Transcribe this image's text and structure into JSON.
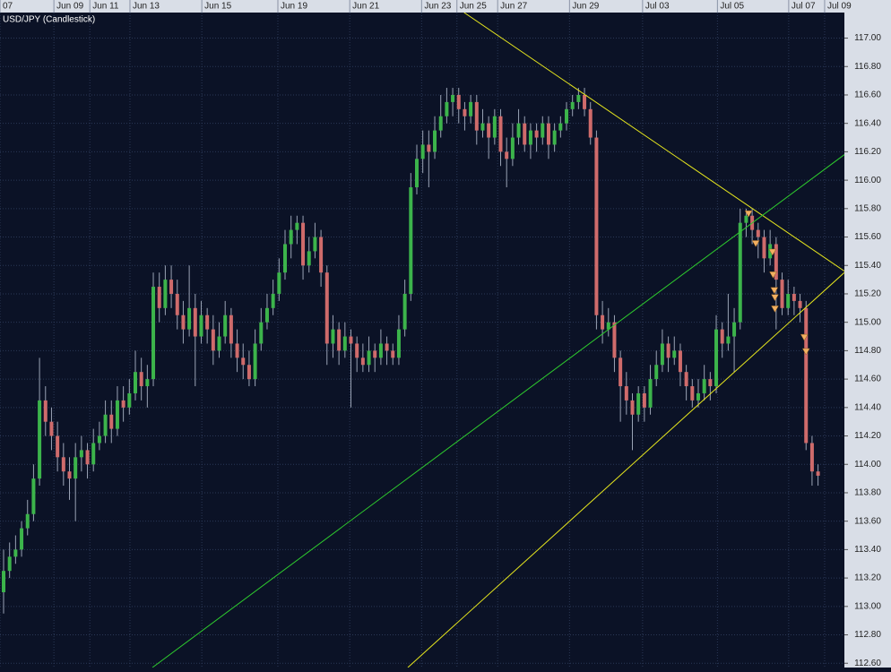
{
  "chart_data": {
    "type": "candlestick",
    "title": "USD/JPY (Candlestick)",
    "xlim": [
      -0.6,
      140.4
    ],
    "ylim": [
      112.57,
      117.18
    ],
    "grid": true,
    "up_color": "#3cb44b",
    "down_color": "#cf6b6b",
    "xticks": [
      {
        "value": -0.6,
        "label": "07"
      },
      {
        "value": 8.4,
        "label": "Jun 09"
      },
      {
        "value": 14.4,
        "label": "Jun 11"
      },
      {
        "value": 21.1,
        "label": "Jun 13"
      },
      {
        "value": 33.1,
        "label": "Jun 15"
      },
      {
        "value": 45.8,
        "label": "Jun 19"
      },
      {
        "value": 57.8,
        "label": "Jun 21"
      },
      {
        "value": 69.8,
        "label": "Jun 23"
      },
      {
        "value": 75.7,
        "label": "Jun 25"
      },
      {
        "value": 82.5,
        "label": "Jun 27"
      },
      {
        "value": 94.5,
        "label": "Jun 29"
      },
      {
        "value": 106.7,
        "label": "Jul 03"
      },
      {
        "value": 119.2,
        "label": "Jul 05"
      },
      {
        "value": 131.1,
        "label": "Jul 07"
      },
      {
        "value": 137.1,
        "label": "Jul 09"
      }
    ],
    "yticks": [
      {
        "value": 112.6,
        "label": "112.60"
      },
      {
        "value": 112.8,
        "label": "112.80"
      },
      {
        "value": 113,
        "label": "113.00"
      },
      {
        "value": 113.2,
        "label": "113.20"
      },
      {
        "value": 113.4,
        "label": "113.40"
      },
      {
        "value": 113.6,
        "label": "113.60"
      },
      {
        "value": 113.8,
        "label": "113.80"
      },
      {
        "value": 114,
        "label": "114.00"
      },
      {
        "value": 114.2,
        "label": "114.20"
      },
      {
        "value": 114.4,
        "label": "114.40"
      },
      {
        "value": 114.6,
        "label": "114.60"
      },
      {
        "value": 114.8,
        "label": "114.80"
      },
      {
        "value": 115,
        "label": "115.00"
      },
      {
        "value": 115.2,
        "label": "115.20"
      },
      {
        "value": 115.4,
        "label": "115.40"
      },
      {
        "value": 115.6,
        "label": "115.60"
      },
      {
        "value": 115.8,
        "label": "115.80"
      },
      {
        "value": 116,
        "label": "116.00"
      },
      {
        "value": 116.2,
        "label": "116.20"
      },
      {
        "value": 116.4,
        "label": "116.40"
      },
      {
        "value": 116.6,
        "label": "116.60"
      },
      {
        "value": 116.8,
        "label": "116.80"
      },
      {
        "value": 117,
        "label": "117.00"
      }
    ],
    "x": [
      0,
      1,
      2,
      3,
      4,
      5,
      6,
      7,
      8,
      9,
      10,
      11,
      12,
      13,
      14,
      15,
      16,
      17,
      18,
      19,
      20,
      21,
      22,
      23,
      24,
      25,
      26,
      27,
      28,
      29,
      30,
      31,
      32,
      33,
      34,
      35,
      36,
      37,
      38,
      39,
      40,
      41,
      42,
      43,
      44,
      45,
      46,
      47,
      48,
      49,
      50,
      51,
      52,
      53,
      54,
      55,
      56,
      57,
      58,
      59,
      60,
      61,
      62,
      63,
      64,
      65,
      66,
      67,
      68,
      69,
      70,
      71,
      72,
      73,
      74,
      75,
      76,
      77,
      78,
      79,
      80,
      81,
      82,
      83,
      84,
      85,
      86,
      87,
      88,
      89,
      90,
      91,
      92,
      93,
      94,
      95,
      96,
      97,
      98,
      99,
      100,
      101,
      102,
      103,
      104,
      105,
      106,
      107,
      108,
      109,
      110,
      111,
      112,
      113,
      114,
      115,
      116,
      117,
      118,
      119,
      120,
      121,
      122,
      123,
      124,
      125,
      126,
      127,
      128,
      129,
      130,
      131,
      132,
      133,
      134,
      135,
      136
    ],
    "ohlc": [
      [
        113.1,
        113.4,
        112.95,
        113.25
      ],
      [
        113.25,
        113.45,
        113.2,
        113.35
      ],
      [
        113.35,
        113.5,
        113.3,
        113.4
      ],
      [
        113.4,
        113.6,
        113.35,
        113.55
      ],
      [
        113.55,
        113.75,
        113.5,
        113.65
      ],
      [
        113.65,
        114.0,
        113.6,
        113.9
      ],
      [
        113.9,
        114.75,
        113.85,
        114.45
      ],
      [
        114.45,
        114.55,
        114.2,
        114.3
      ],
      [
        114.3,
        114.4,
        114.1,
        114.2
      ],
      [
        114.2,
        114.3,
        113.95,
        114.05
      ],
      [
        114.05,
        114.15,
        113.85,
        113.95
      ],
      [
        113.95,
        114.05,
        113.75,
        113.9
      ],
      [
        113.9,
        114.15,
        113.6,
        114.05
      ],
      [
        114.05,
        114.2,
        113.95,
        114.1
      ],
      [
        114.1,
        114.15,
        113.9,
        114.0
      ],
      [
        114.0,
        114.25,
        113.95,
        114.15
      ],
      [
        114.15,
        114.3,
        114.1,
        114.2
      ],
      [
        114.2,
        114.45,
        114.15,
        114.35
      ],
      [
        114.35,
        114.45,
        114.15,
        114.25
      ],
      [
        114.25,
        114.55,
        114.2,
        114.45
      ],
      [
        114.45,
        114.55,
        114.3,
        114.4
      ],
      [
        114.4,
        114.6,
        114.35,
        114.5
      ],
      [
        114.5,
        114.8,
        114.45,
        114.65
      ],
      [
        114.65,
        114.75,
        114.45,
        114.55
      ],
      [
        114.55,
        114.7,
        114.4,
        114.6
      ],
      [
        114.6,
        115.35,
        114.55,
        115.25
      ],
      [
        115.25,
        115.35,
        115.0,
        115.1
      ],
      [
        115.1,
        115.4,
        115.05,
        115.3
      ],
      [
        115.3,
        115.4,
        115.1,
        115.2
      ],
      [
        115.2,
        115.3,
        114.95,
        115.05
      ],
      [
        115.05,
        115.15,
        114.85,
        114.95
      ],
      [
        114.95,
        115.4,
        114.9,
        115.1
      ],
      [
        115.1,
        115.2,
        114.55,
        114.9
      ],
      [
        114.9,
        115.15,
        114.85,
        115.05
      ],
      [
        115.05,
        115.1,
        114.85,
        114.95
      ],
      [
        114.95,
        115.05,
        114.7,
        114.8
      ],
      [
        114.8,
        115.0,
        114.75,
        114.9
      ],
      [
        114.9,
        115.15,
        114.85,
        115.05
      ],
      [
        115.05,
        115.1,
        114.75,
        114.85
      ],
      [
        114.85,
        114.95,
        114.65,
        114.75
      ],
      [
        114.75,
        114.85,
        114.6,
        114.7
      ],
      [
        114.7,
        114.8,
        114.55,
        114.6
      ],
      [
        114.6,
        114.95,
        114.55,
        114.85
      ],
      [
        114.85,
        115.1,
        114.8,
        115.0
      ],
      [
        115.0,
        115.2,
        114.95,
        115.1
      ],
      [
        115.1,
        115.3,
        115.05,
        115.2
      ],
      [
        115.2,
        115.45,
        115.15,
        115.35
      ],
      [
        115.35,
        115.65,
        115.3,
        115.55
      ],
      [
        115.55,
        115.75,
        115.45,
        115.65
      ],
      [
        115.65,
        115.75,
        115.55,
        115.7
      ],
      [
        115.7,
        115.75,
        115.3,
        115.4
      ],
      [
        115.4,
        115.6,
        115.35,
        115.5
      ],
      [
        115.5,
        115.7,
        115.45,
        115.6
      ],
      [
        115.6,
        115.65,
        115.25,
        115.35
      ],
      [
        115.35,
        115.4,
        114.7,
        114.85
      ],
      [
        114.85,
        115.05,
        114.75,
        114.95
      ],
      [
        114.95,
        115.0,
        114.7,
        114.8
      ],
      [
        114.8,
        115.0,
        114.75,
        114.9
      ],
      [
        114.9,
        114.95,
        114.4,
        114.85
      ],
      [
        114.85,
        114.9,
        114.65,
        114.75
      ],
      [
        114.75,
        114.85,
        114.65,
        114.7
      ],
      [
        114.7,
        114.9,
        114.65,
        114.8
      ],
      [
        114.8,
        114.85,
        114.65,
        114.75
      ],
      [
        114.75,
        114.95,
        114.7,
        114.85
      ],
      [
        114.85,
        114.9,
        114.7,
        114.8
      ],
      [
        114.8,
        114.85,
        114.7,
        114.75
      ],
      [
        114.75,
        115.05,
        114.7,
        114.95
      ],
      [
        114.95,
        115.3,
        114.9,
        115.2
      ],
      [
        115.2,
        116.05,
        115.15,
        115.95
      ],
      [
        115.95,
        116.25,
        115.9,
        116.15
      ],
      [
        116.15,
        116.35,
        116.05,
        116.25
      ],
      [
        116.25,
        116.35,
        115.95,
        116.2
      ],
      [
        116.2,
        116.45,
        116.15,
        116.35
      ],
      [
        116.35,
        116.6,
        116.3,
        116.45
      ],
      [
        116.45,
        116.65,
        116.4,
        116.55
      ],
      [
        116.55,
        116.65,
        116.45,
        116.6
      ],
      [
        116.6,
        116.65,
        116.4,
        116.5
      ],
      [
        116.5,
        116.55,
        116.35,
        116.45
      ],
      [
        116.45,
        116.6,
        116.4,
        116.55
      ],
      [
        116.55,
        116.6,
        116.25,
        116.35
      ],
      [
        116.35,
        116.5,
        116.3,
        116.4
      ],
      [
        116.4,
        116.45,
        116.15,
        116.3
      ],
      [
        116.3,
        116.5,
        116.25,
        116.45
      ],
      [
        116.45,
        116.5,
        116.1,
        116.2
      ],
      [
        116.2,
        116.3,
        115.95,
        116.15
      ],
      [
        116.15,
        116.4,
        116.1,
        116.3
      ],
      [
        116.3,
        116.5,
        116.25,
        116.4
      ],
      [
        116.4,
        116.45,
        116.2,
        116.25
      ],
      [
        116.25,
        116.4,
        116.15,
        116.35
      ],
      [
        116.35,
        116.4,
        116.2,
        116.3
      ],
      [
        116.3,
        116.45,
        116.25,
        116.4
      ],
      [
        116.4,
        116.45,
        116.15,
        116.25
      ],
      [
        116.25,
        116.4,
        116.2,
        116.35
      ],
      [
        116.35,
        116.45,
        116.3,
        116.4
      ],
      [
        116.4,
        116.55,
        116.35,
        116.5
      ],
      [
        116.5,
        116.6,
        116.45,
        116.55
      ],
      [
        116.55,
        116.65,
        116.5,
        116.6
      ],
      [
        116.6,
        116.65,
        116.45,
        116.5
      ],
      [
        116.5,
        116.55,
        116.25,
        116.3
      ],
      [
        116.3,
        116.35,
        114.95,
        115.05
      ],
      [
        115.05,
        115.15,
        114.85,
        114.95
      ],
      [
        114.95,
        115.1,
        114.9,
        115.0
      ],
      [
        115.0,
        115.05,
        114.65,
        114.75
      ],
      [
        114.75,
        114.8,
        114.3,
        114.55
      ],
      [
        114.55,
        114.65,
        114.35,
        114.45
      ],
      [
        114.45,
        114.5,
        114.1,
        114.35
      ],
      [
        114.35,
        114.55,
        114.3,
        114.5
      ],
      [
        114.5,
        114.55,
        114.3,
        114.4
      ],
      [
        114.4,
        114.7,
        114.35,
        114.6
      ],
      [
        114.6,
        114.8,
        114.55,
        114.7
      ],
      [
        114.7,
        114.95,
        114.65,
        114.85
      ],
      [
        114.85,
        114.9,
        114.65,
        114.75
      ],
      [
        114.75,
        114.9,
        114.7,
        114.8
      ],
      [
        114.8,
        114.85,
        114.55,
        114.65
      ],
      [
        114.65,
        114.7,
        114.45,
        114.55
      ],
      [
        114.55,
        114.6,
        114.4,
        114.45
      ],
      [
        114.45,
        114.6,
        114.4,
        114.5
      ],
      [
        114.5,
        114.7,
        114.45,
        114.6
      ],
      [
        114.6,
        114.65,
        114.45,
        114.55
      ],
      [
        114.55,
        115.05,
        114.5,
        114.95
      ],
      [
        114.95,
        115.0,
        114.75,
        114.85
      ],
      [
        114.85,
        115.2,
        114.8,
        114.9
      ],
      [
        114.9,
        115.1,
        114.65,
        115.0
      ],
      [
        115.0,
        115.8,
        114.95,
        115.7
      ],
      [
        115.7,
        115.8,
        115.6,
        115.75
      ],
      [
        115.75,
        115.8,
        115.55,
        115.65
      ],
      [
        115.65,
        115.7,
        115.45,
        115.6
      ],
      [
        115.6,
        115.65,
        115.35,
        115.45
      ],
      [
        115.45,
        115.65,
        115.4,
        115.55
      ],
      [
        115.55,
        115.6,
        114.95,
        115.3
      ],
      [
        115.3,
        115.35,
        115.05,
        115.1
      ],
      [
        115.1,
        115.3,
        115.05,
        115.2
      ],
      [
        115.2,
        115.25,
        115.05,
        115.15
      ],
      [
        115.15,
        115.2,
        115.0,
        115.1
      ],
      [
        115.1,
        115.15,
        114.1,
        114.15
      ],
      [
        114.15,
        114.2,
        113.85,
        113.95
      ],
      [
        113.95,
        114.0,
        113.85,
        113.92
      ]
    ],
    "lines": [
      {
        "color": "#e6e61e",
        "x": [
          76.9,
          140.4
        ],
        "y": [
          117.18,
          115.36
        ]
      },
      {
        "color": "#2ecc2e",
        "x": [
          24.85,
          140.4
        ],
        "y": [
          112.57,
          116.18
        ]
      },
      {
        "color": "#e6e61e",
        "x": [
          67.5,
          140.4
        ],
        "y": [
          112.57,
          115.35
        ]
      }
    ],
    "signals": {
      "color": "#f2b061",
      "x": [
        124.4,
        125.6,
        128.4,
        128.5,
        128.7,
        128.8,
        128.8,
        133.7,
        134.0
      ],
      "y": [
        115.76,
        115.55,
        115.49,
        115.33,
        115.22,
        115.17,
        115.09,
        114.89,
        114.79
      ]
    }
  }
}
